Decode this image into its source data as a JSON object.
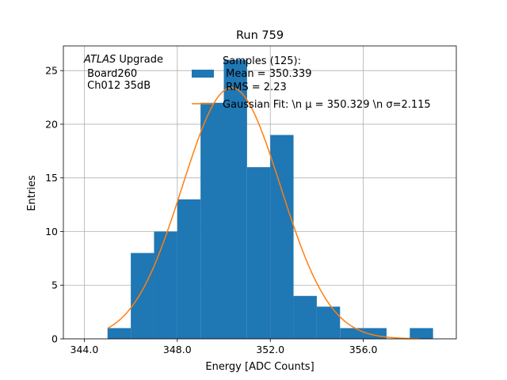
{
  "chart_data": {
    "type": "bar",
    "title": "Run 759",
    "xlabel": "Energy [ADC Counts]",
    "ylabel": "Entries",
    "xlim": [
      343.1,
      360.0
    ],
    "ylim": [
      0,
      27.3
    ],
    "grid": true,
    "x_ticks": [
      344,
      348,
      352,
      356
    ],
    "x_tick_labels": [
      "344.0",
      "348.0",
      "352.0",
      "356.0"
    ],
    "y_ticks": [
      0,
      5,
      10,
      15,
      20,
      25
    ],
    "y_tick_labels": [
      "0",
      "5",
      "10",
      "15",
      "20",
      "25"
    ],
    "histogram": {
      "bin_edges": [
        345,
        346,
        347,
        348,
        349,
        350,
        351,
        352,
        353,
        354,
        355,
        356,
        357,
        358,
        359
      ],
      "counts": [
        1,
        8,
        10,
        13,
        22,
        26,
        16,
        19,
        4,
        3,
        1,
        1,
        0,
        1
      ],
      "color": "#1f77b4"
    },
    "fit": {
      "type": "gaussian",
      "mu": 350.329,
      "sigma": 2.115,
      "amplitude": 23.4,
      "x_range": [
        345.0,
        358.4
      ],
      "color": "#ff7f0e"
    },
    "annotation": {
      "italic": "ATLAS",
      "line1_rest": " Upgrade",
      "line2": " Board260",
      "line3": " Ch012 35dB"
    },
    "legend": {
      "placement": "top-right",
      "entries": [
        {
          "kind": "patch",
          "lines": [
            "Samples (125):",
            " Mean = 350.339",
            " RMS = 2.23"
          ]
        },
        {
          "kind": "line",
          "lines": [
            "Gaussian Fit: \\n μ = 350.329 \\n σ=2.115"
          ]
        }
      ]
    }
  }
}
